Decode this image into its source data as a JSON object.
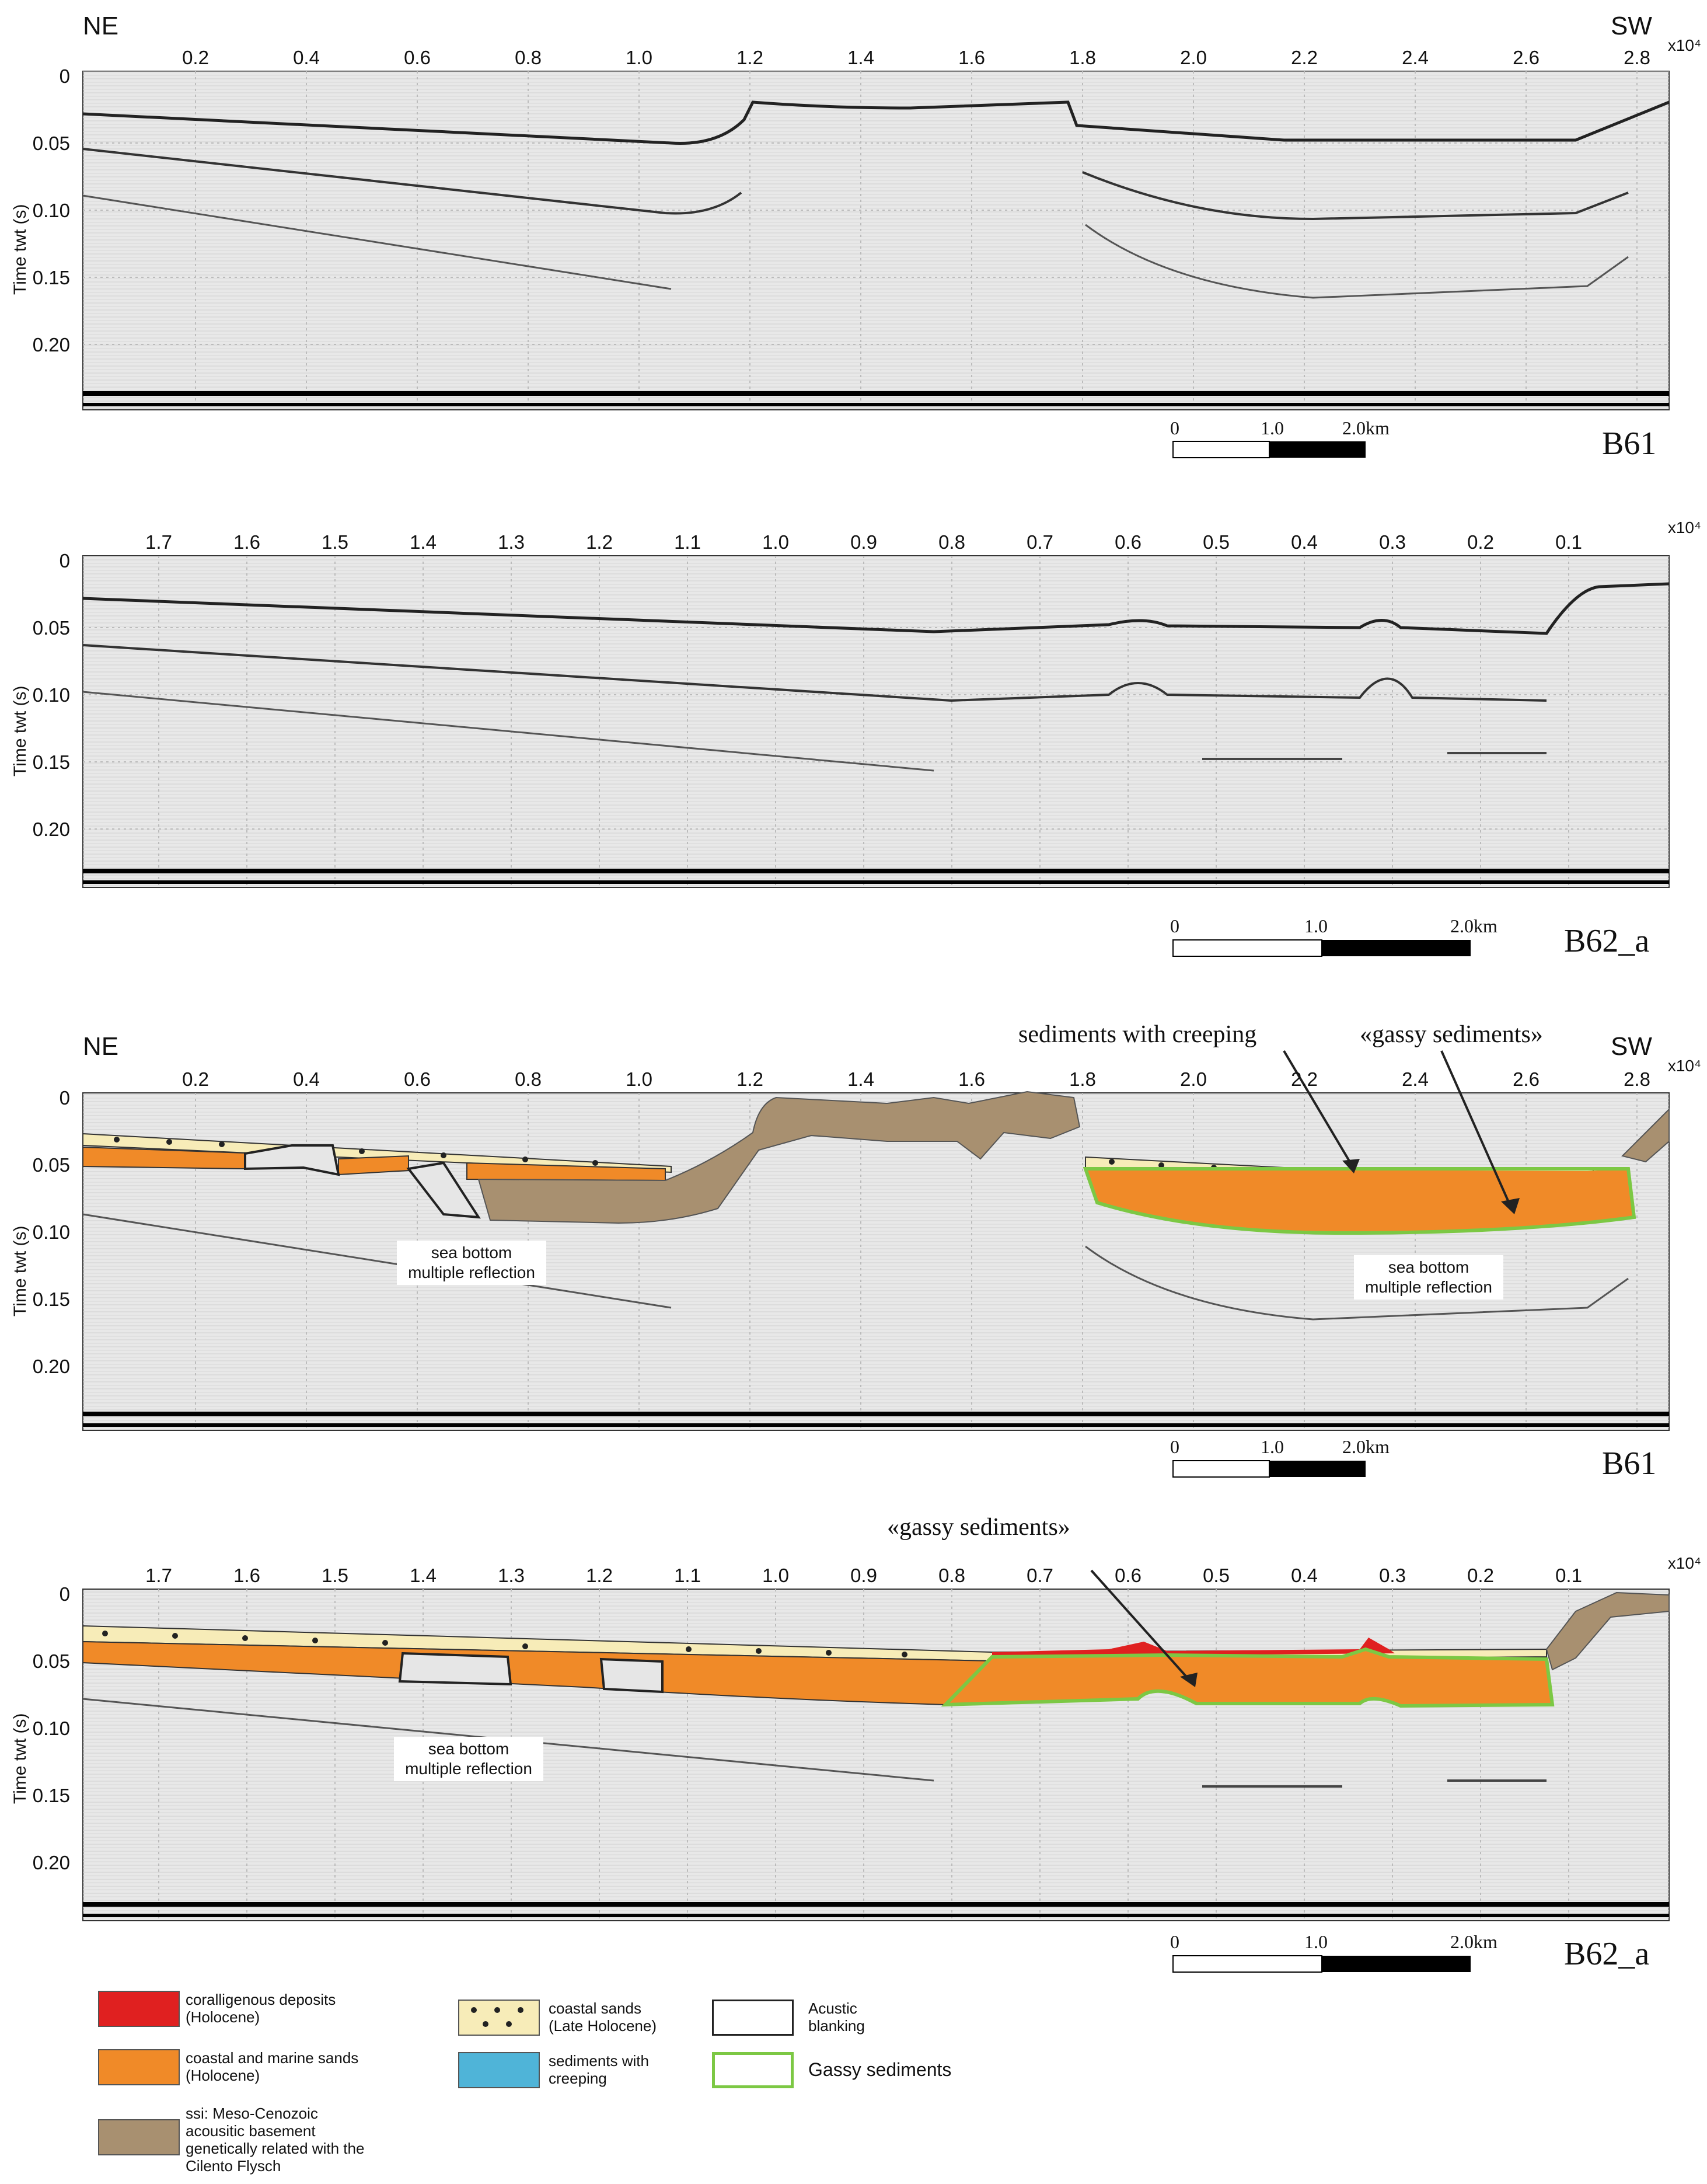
{
  "colors": {
    "coralligenous": "#e02020",
    "coastal_marine_sands": "#f08a28",
    "basement": "#a89070",
    "coastal_sands": "#f7ecb8",
    "creeping": "#4fb4d8",
    "gassy_outline": "#7cc844"
  },
  "panels": [
    {
      "name": "B61",
      "dir_left": "NE",
      "dir_right": "SW",
      "x_ticks": [
        "0.2",
        "0.4",
        "0.6",
        "0.8",
        "1.0",
        "1.2",
        "1.4",
        "1.6",
        "1.8",
        "2.0",
        "2.2",
        "2.4",
        "2.6",
        "2.8"
      ],
      "x_exp": "x10⁴",
      "y_label": "Time twt (s)",
      "y_ticks": [
        "0",
        "0.05",
        "0.10",
        "0.15",
        "0.20"
      ],
      "scale": {
        "s0": "0",
        "s1": "1.0",
        "s2": "2.0km"
      }
    },
    {
      "name": "B62_a",
      "dir_left": "",
      "dir_right": "",
      "x_ticks": [
        "1.7",
        "1.6",
        "1.5",
        "1.4",
        "1.3",
        "1.2",
        "1.1",
        "1.0",
        "0.9",
        "0.8",
        "0.7",
        "0.6",
        "0.5",
        "0.4",
        "0.3",
        "0.2",
        "0.1"
      ],
      "x_exp": "x10⁴",
      "y_label": "Time twt (s)",
      "y_ticks": [
        "0",
        "0.05",
        "0.10",
        "0.15",
        "0.20"
      ],
      "scale": {
        "s0": "0",
        "s1": "1.0",
        "s2": "2.0km"
      }
    },
    {
      "name": "B61",
      "dir_left": "NE",
      "dir_right": "SW",
      "x_ticks": [
        "0.2",
        "0.4",
        "0.6",
        "0.8",
        "1.0",
        "1.2",
        "1.4",
        "1.6",
        "1.8",
        "2.0",
        "2.2",
        "2.4",
        "2.6",
        "2.8"
      ],
      "x_exp": "x10⁴",
      "y_label": "Time twt (s)",
      "y_ticks": [
        "0",
        "0.05",
        "0.10",
        "0.15",
        "0.20"
      ],
      "scale": {
        "s0": "0",
        "s1": "1.0",
        "s2": "2.0km"
      },
      "annotations": {
        "creeping": "sediments with creeping",
        "gassy": "«gassy sediments»",
        "multiple_left": "sea bottom multiple reflection",
        "multiple_right": "sea bottom multiple reflection"
      }
    },
    {
      "name": "B62_a",
      "dir_left": "",
      "dir_right": "",
      "x_ticks": [
        "1.7",
        "1.6",
        "1.5",
        "1.4",
        "1.3",
        "1.2",
        "1.1",
        "1.0",
        "0.9",
        "0.8",
        "0.7",
        "0.6",
        "0.5",
        "0.4",
        "0.3",
        "0.2",
        "0.1"
      ],
      "x_exp": "x10⁴",
      "y_label": "Time twt (s)",
      "y_ticks": [
        "0",
        "0.05",
        "0.10",
        "0.15",
        "0.20"
      ],
      "scale": {
        "s0": "0",
        "s1": "1.0",
        "s2": "2.0km"
      },
      "annotations": {
        "gassy": "«gassy sediments»",
        "multiple_left": "sea bottom multiple reflection"
      }
    }
  ],
  "legend": [
    {
      "key": "coralligenous",
      "label": "coralligenous deposits (Holocene)"
    },
    {
      "key": "coastal_marine",
      "label": "coastal and marine sands (Holocene)"
    },
    {
      "key": "basement",
      "label": "ssi: Meso-Cenozoic acousitic basement genetically related with the Cilento Flysch"
    },
    {
      "key": "coastal_sands",
      "label": "coastal sands (Late Holocene)"
    },
    {
      "key": "creeping",
      "label": "sediments with creeping"
    },
    {
      "key": "blanking",
      "label": "Acustic blanking"
    },
    {
      "key": "gassy",
      "label": "Gassy sediments"
    }
  ]
}
